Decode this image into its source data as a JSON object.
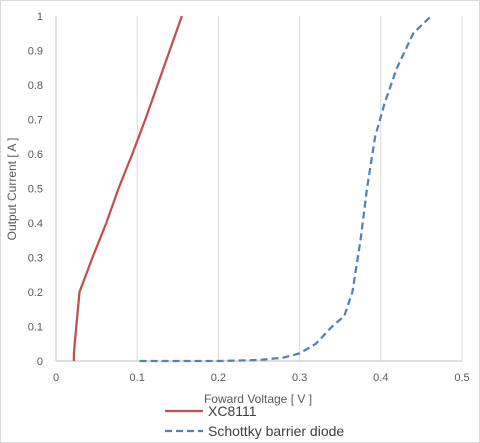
{
  "chart_data": {
    "type": "line",
    "title": "",
    "xlabel": "Foward Voltage  [ V ]",
    "ylabel": "Output Current  [ A ]",
    "xlim": [
      0,
      0.5
    ],
    "ylim": [
      0,
      1
    ],
    "x_ticks": [
      "0",
      "0.1",
      "0.2",
      "0.3",
      "0.4",
      "0.5"
    ],
    "y_ticks": [
      "0",
      "0.1",
      "0.2",
      "0.3",
      "0.4",
      "0.5",
      "0.6",
      "0.7",
      "0.8",
      "0.9",
      "1"
    ],
    "grid": "vertical",
    "legend_position": "bottom",
    "series": [
      {
        "name": "XC8111",
        "color": "#c0504d",
        "dash": "solid",
        "points": [
          [
            0.022,
            0.0
          ],
          [
            0.022,
            0.02
          ],
          [
            0.023,
            0.05
          ],
          [
            0.025,
            0.1
          ],
          [
            0.029,
            0.2
          ],
          [
            0.045,
            0.3
          ],
          [
            0.062,
            0.4
          ],
          [
            0.077,
            0.5
          ],
          [
            0.094,
            0.6
          ],
          [
            0.11,
            0.7
          ],
          [
            0.125,
            0.8
          ],
          [
            0.14,
            0.9
          ],
          [
            0.155,
            1.0
          ]
        ]
      },
      {
        "name": "Schottky barrier diode",
        "color": "#4f81bd",
        "dash": "dashed",
        "points": [
          [
            0.103,
            0.0
          ],
          [
            0.15,
            0.0
          ],
          [
            0.2,
            0.0
          ],
          [
            0.25,
            0.003
          ],
          [
            0.28,
            0.01
          ],
          [
            0.3,
            0.022
          ],
          [
            0.32,
            0.05
          ],
          [
            0.34,
            0.1
          ],
          [
            0.355,
            0.13
          ],
          [
            0.365,
            0.2
          ],
          [
            0.375,
            0.35
          ],
          [
            0.383,
            0.5
          ],
          [
            0.393,
            0.65
          ],
          [
            0.405,
            0.75
          ],
          [
            0.42,
            0.85
          ],
          [
            0.44,
            0.95
          ],
          [
            0.462,
            1.0
          ]
        ]
      }
    ]
  }
}
